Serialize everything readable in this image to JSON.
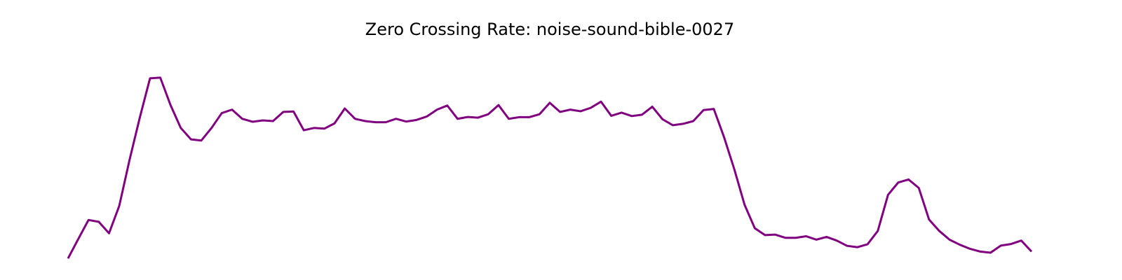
{
  "chart_data": {
    "type": "line",
    "title": "Zero Crossing Rate: noise-sound-bible-0027",
    "xlabel": "",
    "ylabel": "",
    "axes_visible": false,
    "grid": false,
    "x": [
      0,
      1,
      2,
      3,
      4,
      5,
      6,
      7,
      8,
      9,
      10,
      11,
      12,
      13,
      14,
      15,
      16,
      17,
      18,
      19,
      20,
      21,
      22,
      23,
      24,
      25,
      26,
      27,
      28,
      29,
      30,
      31,
      32,
      33,
      34,
      35,
      36,
      37,
      38,
      39,
      40,
      41,
      42,
      43,
      44,
      45,
      46,
      47,
      48,
      49,
      50,
      51,
      52,
      53,
      54,
      55,
      56,
      57,
      58,
      59,
      60,
      61,
      62,
      63,
      64,
      65,
      66,
      67,
      68,
      69,
      70,
      71,
      72,
      73,
      74,
      75,
      76,
      77,
      78,
      79,
      80,
      81,
      82,
      83,
      84,
      85,
      86,
      87,
      88,
      89,
      90,
      91,
      92,
      93,
      94
    ],
    "ylim": [
      0,
      1
    ],
    "series": [
      {
        "name": "",
        "color": "#800080",
        "values": [
          0.03,
          0.115,
          0.198,
          0.19,
          0.14,
          0.26,
          0.46,
          0.645,
          0.817,
          0.82,
          0.7,
          0.6,
          0.55,
          0.545,
          0.6,
          0.665,
          0.68,
          0.64,
          0.627,
          0.633,
          0.63,
          0.67,
          0.672,
          0.59,
          0.6,
          0.597,
          0.62,
          0.685,
          0.64,
          0.63,
          0.625,
          0.625,
          0.64,
          0.628,
          0.635,
          0.65,
          0.68,
          0.698,
          0.64,
          0.648,
          0.645,
          0.66,
          0.7,
          0.64,
          0.647,
          0.647,
          0.66,
          0.71,
          0.67,
          0.68,
          0.673,
          0.688,
          0.715,
          0.653,
          0.667,
          0.652,
          0.658,
          0.693,
          0.638,
          0.612,
          0.618,
          0.63,
          0.678,
          0.683,
          0.56,
          0.42,
          0.265,
          0.162,
          0.132,
          0.134,
          0.12,
          0.12,
          0.127,
          0.112,
          0.124,
          0.108,
          0.085,
          0.079,
          0.092,
          0.15,
          0.308,
          0.362,
          0.375,
          0.338,
          0.2,
          0.15,
          0.112,
          0.09,
          0.072,
          0.06,
          0.055,
          0.086,
          0.093,
          0.108,
          0.06
        ]
      }
    ]
  }
}
